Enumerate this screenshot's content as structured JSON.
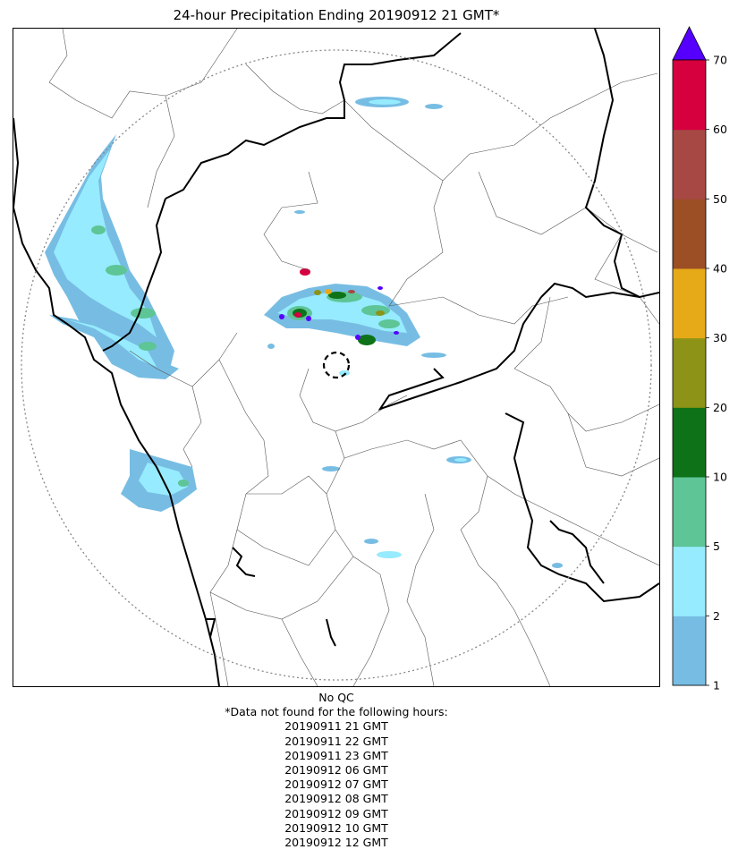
{
  "title": "24-hour Precipitation Ending 20190912 21 GMT*",
  "notes": {
    "qc": "No QC",
    "missing_header": "*Data not found for the following hours:",
    "missing_hours": [
      "20190911 21 GMT",
      "20190911 22 GMT",
      "20190911 23 GMT",
      "20190912 06 GMT",
      "20190912 07 GMT",
      "20190912 08 GMT",
      "20190912 09 GMT",
      "20190912 10 GMT",
      "20190912 12 GMT"
    ]
  },
  "colorbar": {
    "tick_labels": [
      "1",
      "2",
      "5",
      "10",
      "20",
      "30",
      "40",
      "50",
      "60",
      "70"
    ],
    "colors": [
      "#77bde3",
      "#96ebfe",
      "#5dc596",
      "#0e7219",
      "#8c9316",
      "#e6aa19",
      "#9c4e25",
      "#a74844",
      "#d6003f"
    ],
    "over_color": "#5500ff"
  },
  "map": {
    "radar_circle_style": "dotted",
    "radar_site_marker": "dashed circle",
    "legend_colors": {
      "border": "#000000",
      "district": "#555555"
    }
  }
}
